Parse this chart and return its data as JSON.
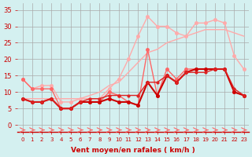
{
  "x": [
    0,
    1,
    2,
    3,
    4,
    5,
    6,
    7,
    8,
    9,
    10,
    11,
    12,
    13,
    14,
    15,
    16,
    17,
    18,
    19,
    20,
    21,
    22,
    23
  ],
  "line1": [
    14,
    11,
    11,
    11,
    5,
    5,
    7,
    7,
    7,
    10,
    9,
    7,
    6,
    23,
    9,
    17,
    14,
    17,
    17,
    17,
    17,
    17,
    10,
    9
  ],
  "line2": [
    8,
    7,
    7,
    8,
    5,
    5,
    7,
    7,
    7,
    8,
    7,
    7,
    6,
    13,
    9,
    15,
    13,
    16,
    17,
    17,
    17,
    17,
    10,
    9
  ],
  "line3": [
    8,
    7,
    7,
    8,
    5,
    5,
    7,
    8,
    8,
    9,
    9,
    9,
    9,
    13,
    13,
    15,
    13,
    16,
    16,
    16,
    17,
    17,
    11,
    9
  ],
  "line4_gust": [
    14,
    11,
    12,
    12,
    7,
    7,
    8,
    8,
    8,
    11,
    14,
    20,
    27,
    33,
    30,
    30,
    28,
    27,
    31,
    31,
    32,
    31,
    21,
    17
  ],
  "line5_smooth": [
    8,
    8,
    8,
    8,
    8,
    8,
    8,
    9,
    10,
    12,
    13,
    16,
    19,
    22,
    23,
    25,
    26,
    27,
    28,
    29,
    29,
    29,
    28,
    27
  ],
  "wind_arrows": [
    0,
    1,
    2,
    3,
    4,
    5,
    6,
    7,
    8,
    9,
    10,
    11,
    12,
    13,
    14,
    15,
    16,
    17,
    18,
    19,
    20,
    21,
    22,
    23
  ],
  "bg_color": "#d4f0f0",
  "grid_color": "#aaaaaa",
  "line1_color": "#ff6666",
  "line2_color": "#cc0000",
  "line3_color": "#dd2222",
  "line4_color": "#ffaaaa",
  "line5_color": "#ffaaaa",
  "xlabel": "Vent moyen/en rafales ( km/h )",
  "ylabel_ticks": [
    0,
    5,
    10,
    15,
    20,
    25,
    30,
    35
  ],
  "ylim": [
    -2,
    37
  ],
  "xlim": [
    -0.5,
    23.5
  ],
  "title_color": "#cc0000",
  "tick_color": "#cc0000",
  "label_color": "#cc0000"
}
